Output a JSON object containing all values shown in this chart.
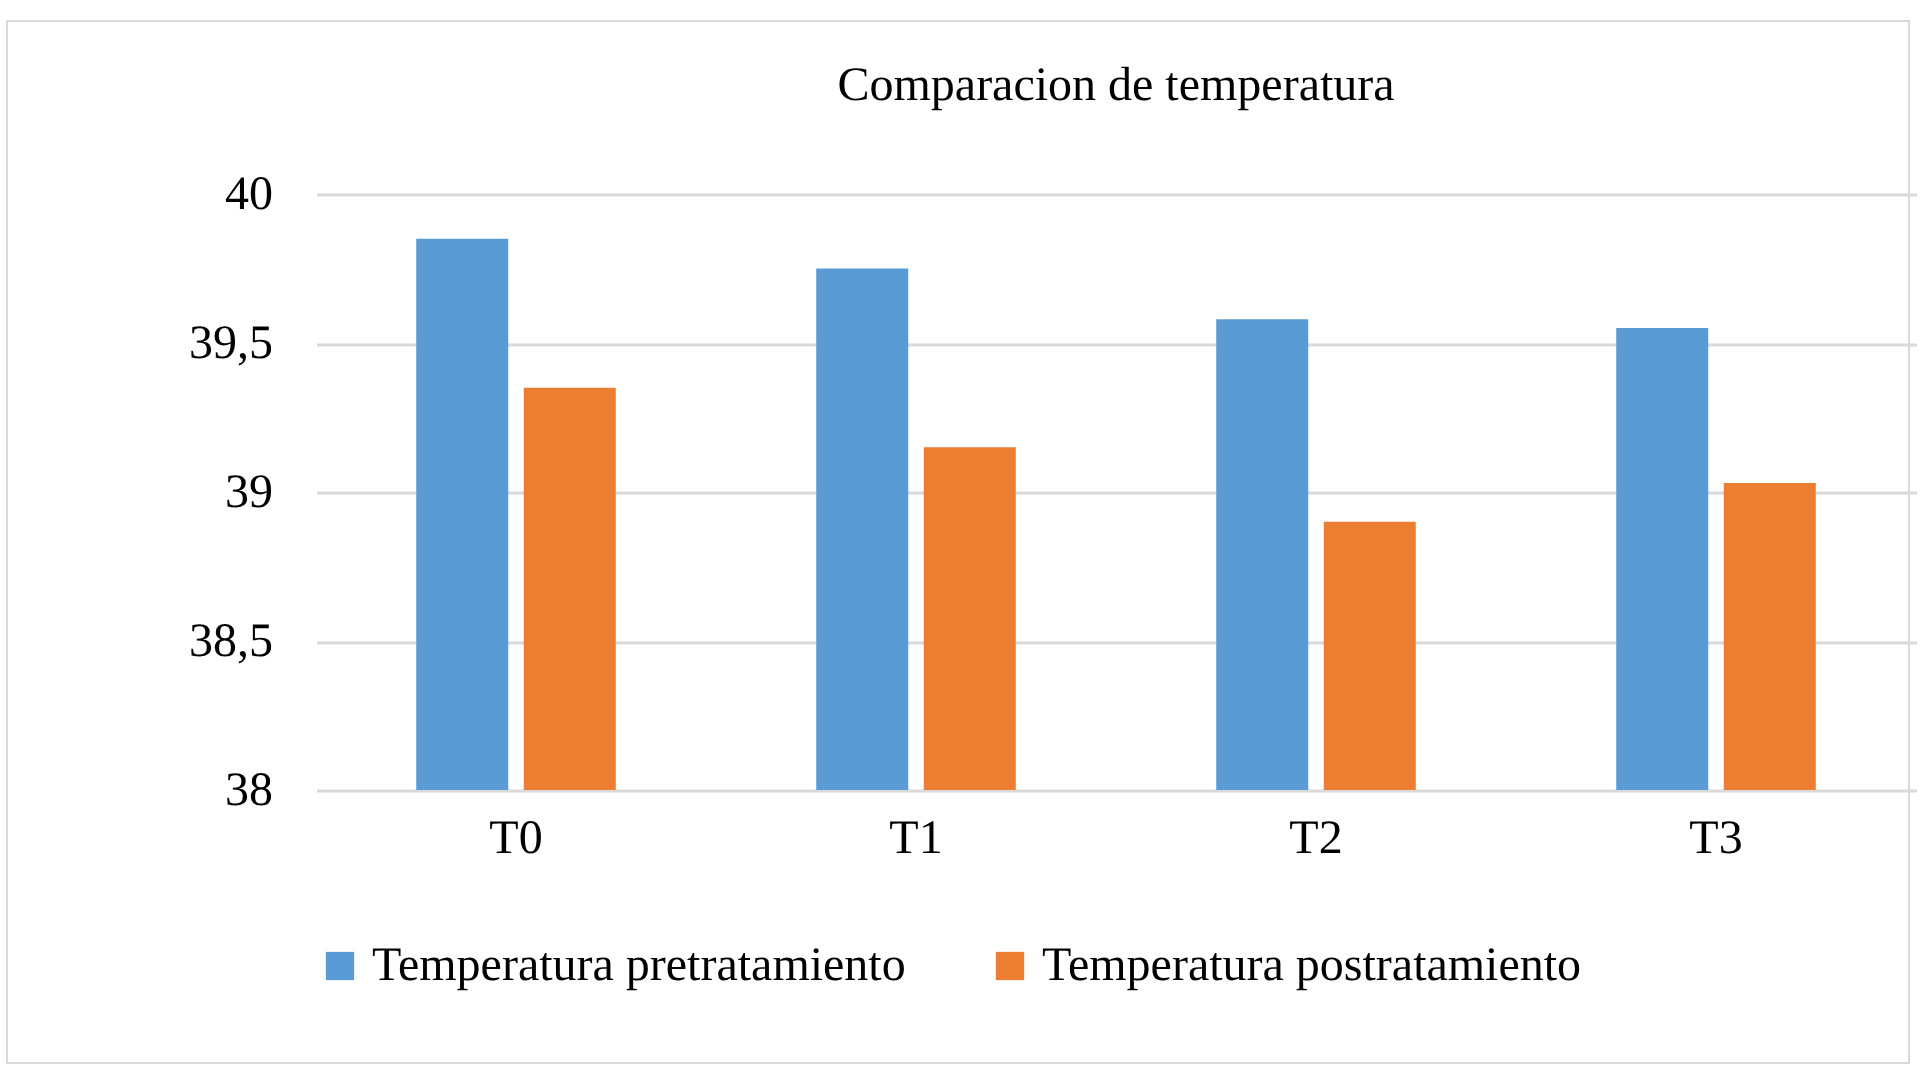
{
  "chart_data": {
    "type": "bar",
    "title": "Comparacion de temperatura",
    "categories": [
      "T0",
      "T1",
      "T2",
      "T3"
    ],
    "series": [
      {
        "name": "Temperatura pretratamiento",
        "color": "#5b9bd5",
        "values": [
          39.85,
          39.75,
          39.58,
          39.55
        ]
      },
      {
        "name": "Temperatura postratamiento",
        "color": "#ed7d31",
        "values": [
          39.35,
          39.15,
          38.9,
          39.03
        ]
      }
    ],
    "ylim": [
      38,
      40
    ],
    "yticks": [
      38,
      {
        "value": 38.5,
        "label": "38,5"
      },
      39,
      {
        "value": 39.5,
        "label": "39,5"
      },
      40
    ],
    "grid": "y",
    "legend": "bottom"
  }
}
